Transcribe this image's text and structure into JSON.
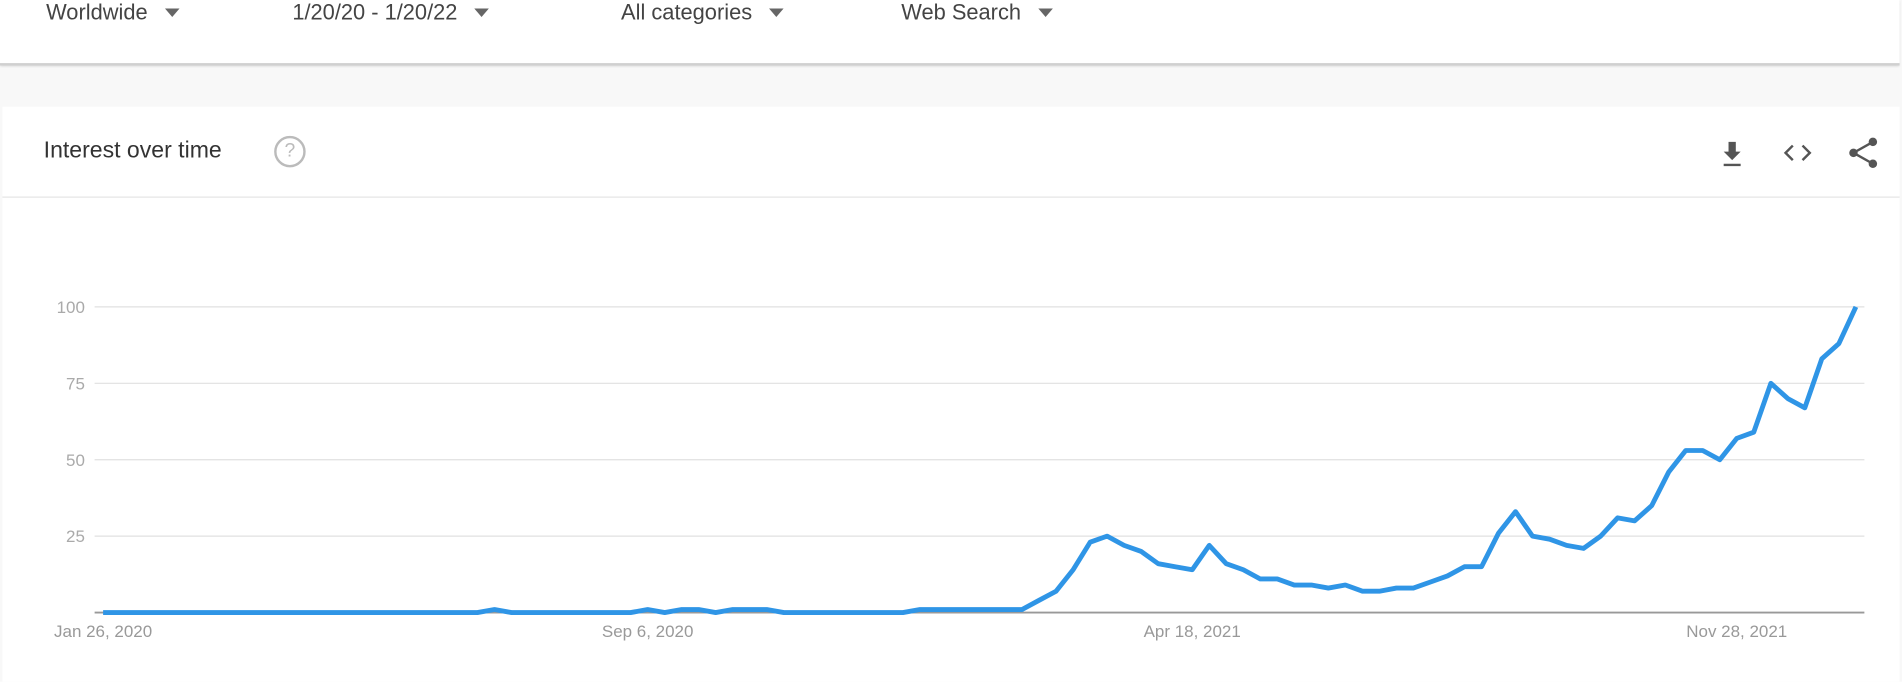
{
  "filters": [
    {
      "label": "Worldwide"
    },
    {
      "label": "1/20/20 - 1/20/22"
    },
    {
      "label": "All categories"
    },
    {
      "label": "Web Search"
    }
  ],
  "card": {
    "title": "Interest over time",
    "help_icon": "question-circle-icon",
    "actions": [
      "download-icon",
      "embed-code-icon",
      "share-icon"
    ]
  },
  "colors": {
    "line": "#2f95e6",
    "grid": "#e0e0e0",
    "axis": "#999999"
  },
  "chart_data": {
    "type": "line",
    "title": "",
    "xlabel": "",
    "ylabel": "",
    "ylim": [
      0,
      100
    ],
    "yticks": [
      25,
      50,
      75,
      100
    ],
    "xtick_labels": [
      "Jan 26, 2020",
      "Sep 6, 2020",
      "Apr 18, 2021",
      "Nov 28, 2021"
    ],
    "xtick_dates": [
      "2020-01-26",
      "2020-09-06",
      "2021-04-18",
      "2021-11-28"
    ],
    "grid": true,
    "x": [
      "2020-01-26",
      "2020-02-02",
      "2020-02-09",
      "2020-02-16",
      "2020-02-23",
      "2020-03-01",
      "2020-03-08",
      "2020-03-15",
      "2020-03-22",
      "2020-03-29",
      "2020-04-05",
      "2020-04-12",
      "2020-04-19",
      "2020-04-26",
      "2020-05-03",
      "2020-05-10",
      "2020-05-17",
      "2020-05-24",
      "2020-05-31",
      "2020-06-07",
      "2020-06-14",
      "2020-06-21",
      "2020-06-28",
      "2020-07-05",
      "2020-07-12",
      "2020-07-19",
      "2020-07-26",
      "2020-08-02",
      "2020-08-09",
      "2020-08-16",
      "2020-08-23",
      "2020-08-30",
      "2020-09-06",
      "2020-09-13",
      "2020-09-20",
      "2020-09-27",
      "2020-10-04",
      "2020-10-11",
      "2020-10-18",
      "2020-10-25",
      "2020-11-01",
      "2020-11-08",
      "2020-11-15",
      "2020-11-22",
      "2020-11-29",
      "2020-12-06",
      "2020-12-13",
      "2020-12-20",
      "2020-12-27",
      "2021-01-03",
      "2021-01-10",
      "2021-01-17",
      "2021-01-24",
      "2021-01-31",
      "2021-02-07",
      "2021-02-14",
      "2021-02-21",
      "2021-02-28",
      "2021-03-07",
      "2021-03-14",
      "2021-03-21",
      "2021-03-28",
      "2021-04-04",
      "2021-04-11",
      "2021-04-18",
      "2021-04-25",
      "2021-05-02",
      "2021-05-09",
      "2021-05-16",
      "2021-05-23",
      "2021-05-30",
      "2021-06-06",
      "2021-06-13",
      "2021-06-20",
      "2021-06-27",
      "2021-07-04",
      "2021-07-11",
      "2021-07-18",
      "2021-07-25",
      "2021-08-01",
      "2021-08-08",
      "2021-08-15",
      "2021-08-22",
      "2021-08-29",
      "2021-09-05",
      "2021-09-12",
      "2021-09-19",
      "2021-09-26",
      "2021-10-03",
      "2021-10-10",
      "2021-10-17",
      "2021-10-24",
      "2021-10-31",
      "2021-11-07",
      "2021-11-14",
      "2021-11-21",
      "2021-11-28",
      "2021-12-05",
      "2021-12-12",
      "2021-12-19",
      "2021-12-26",
      "2022-01-02",
      "2022-01-09",
      "2022-01-16"
    ],
    "series": [
      {
        "values": [
          0,
          0,
          0,
          0,
          0,
          0,
          0,
          0,
          0,
          0,
          0,
          0,
          0,
          0,
          0,
          0,
          0,
          0,
          0,
          0,
          0,
          0,
          0,
          1,
          0,
          0,
          0,
          0,
          0,
          0,
          0,
          0,
          1,
          0,
          1,
          1,
          0,
          1,
          1,
          1,
          0,
          0,
          0,
          0,
          0,
          0,
          0,
          0,
          1,
          1,
          1,
          1,
          1,
          1,
          1,
          4,
          7,
          14,
          23,
          25,
          22,
          20,
          16,
          15,
          14,
          22,
          16,
          14,
          11,
          11,
          9,
          9,
          8,
          9,
          7,
          7,
          8,
          8,
          10,
          12,
          15,
          15,
          26,
          33,
          25,
          24,
          22,
          21,
          25,
          31,
          30,
          35,
          46,
          53,
          53,
          50,
          57,
          59,
          75,
          70,
          67,
          83,
          88,
          100
        ]
      }
    ]
  }
}
